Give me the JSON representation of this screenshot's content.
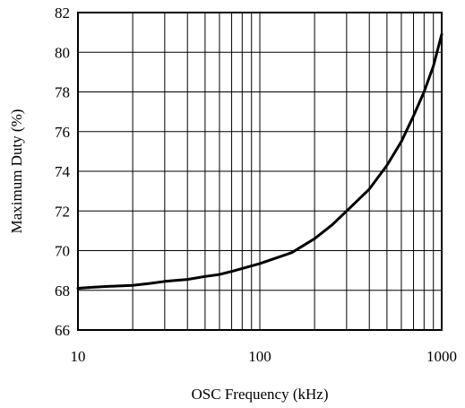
{
  "chart_data": {
    "type": "line",
    "title": "",
    "xlabel": "OSC Frequency (kHz)",
    "ylabel": "Maximum Duty (%)",
    "x_scale": "log",
    "xlim": [
      10,
      1000
    ],
    "ylim": [
      66,
      82
    ],
    "grid": true,
    "legend": "none",
    "x_ticks": [
      10,
      100,
      1000
    ],
    "x_tick_labels": [
      "10",
      "100",
      "1000"
    ],
    "y_ticks": [
      66,
      68,
      70,
      72,
      74,
      76,
      78,
      80,
      82
    ],
    "y_tick_labels": [
      "66",
      "68",
      "70",
      "72",
      "74",
      "76",
      "78",
      "80",
      "82"
    ],
    "series": [
      {
        "color": "#000000",
        "x": [
          10,
          12,
          15,
          20,
          25,
          30,
          40,
          50,
          60,
          70,
          80,
          100,
          120,
          150,
          200,
          250,
          300,
          400,
          500,
          600,
          700,
          800,
          900,
          1000
        ],
        "y": [
          68.1,
          68.15,
          68.2,
          68.25,
          68.35,
          68.45,
          68.55,
          68.7,
          68.8,
          68.95,
          69.1,
          69.35,
          69.6,
          69.9,
          70.6,
          71.3,
          72.0,
          73.1,
          74.3,
          75.5,
          76.8,
          78.0,
          79.3,
          80.9
        ]
      }
    ]
  }
}
